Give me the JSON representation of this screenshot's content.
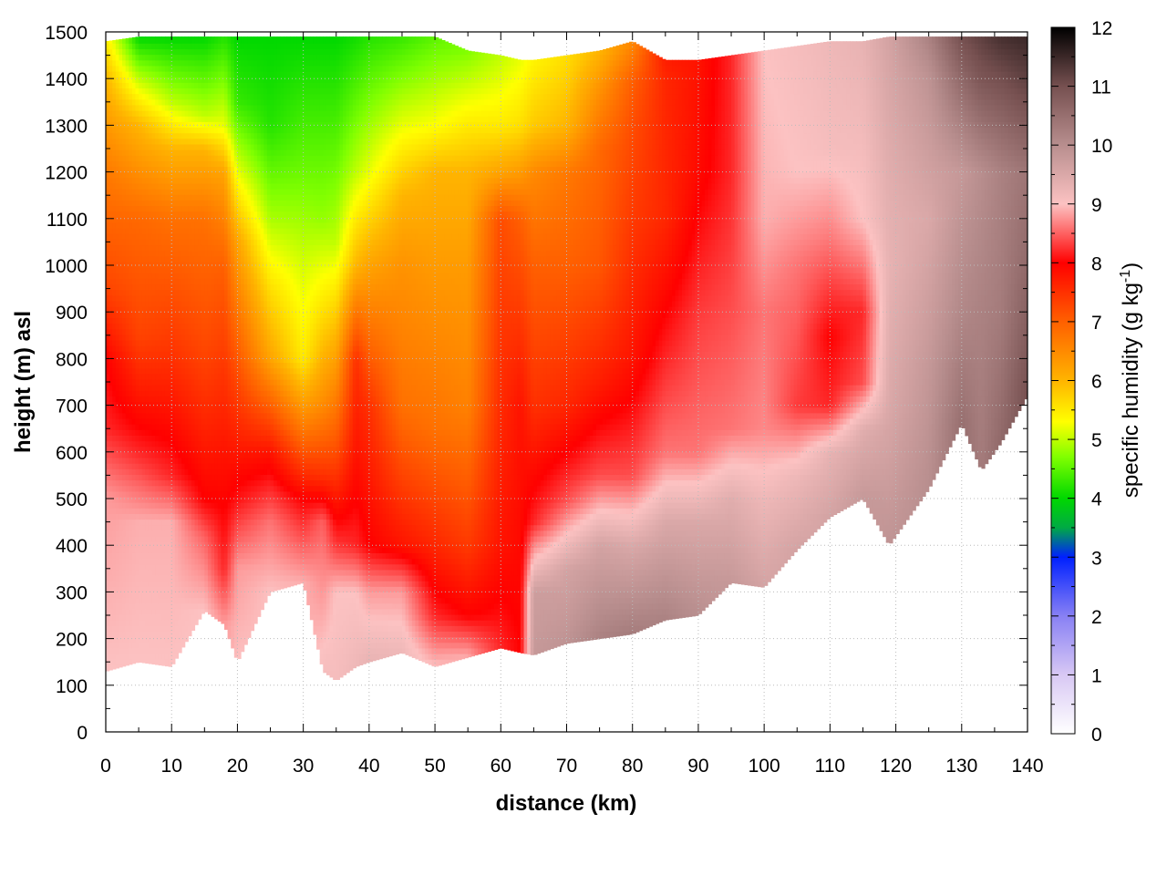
{
  "chart_data": {
    "type": "heatmap",
    "xlabel": "distance (km)",
    "ylabel": "height (m) asl",
    "colorbar": {
      "label_main": "specific humidity (g kg",
      "label_sup": "-1",
      "label_end": ")",
      "range": [
        0,
        12
      ],
      "ticks": [
        "0",
        "1",
        "2",
        "3",
        "4",
        "5",
        "6",
        "7",
        "8",
        "9",
        "10",
        "11",
        "12"
      ],
      "colormap": [
        {
          "v": 0,
          "color": "#ffffff"
        },
        {
          "v": 1,
          "color": "#d8c8f4"
        },
        {
          "v": 2,
          "color": "#8880f4"
        },
        {
          "v": 3,
          "color": "#0020ff"
        },
        {
          "v": 3.5,
          "color": "#00aa44"
        },
        {
          "v": 4,
          "color": "#00d800"
        },
        {
          "v": 4.7,
          "color": "#80ff00"
        },
        {
          "v": 5.3,
          "color": "#ffff00"
        },
        {
          "v": 6,
          "color": "#ffb400"
        },
        {
          "v": 7,
          "color": "#ff6000"
        },
        {
          "v": 8,
          "color": "#ff0000"
        },
        {
          "v": 9,
          "color": "#fcc2c2"
        },
        {
          "v": 10,
          "color": "#b88e8e"
        },
        {
          "v": 11,
          "color": "#765050"
        },
        {
          "v": 12,
          "color": "#000000"
        }
      ]
    },
    "xlim": [
      0,
      140
    ],
    "ylim": [
      0,
      1500
    ],
    "xticks": [
      "0",
      "10",
      "20",
      "30",
      "40",
      "50",
      "60",
      "70",
      "80",
      "90",
      "100",
      "110",
      "120",
      "130",
      "140"
    ],
    "yticks": [
      "0",
      "100",
      "200",
      "300",
      "400",
      "500",
      "600",
      "700",
      "800",
      "900",
      "1000",
      "1100",
      "1200",
      "1300",
      "1400",
      "1500"
    ],
    "grid": true,
    "profiles": [
      {
        "x": 0,
        "bottom": 130,
        "top": 1480,
        "levels": [
          [
            130,
            9.0
          ],
          [
            500,
            8.8
          ],
          [
            650,
            8.2
          ],
          [
            800,
            8.0
          ],
          [
            950,
            7.3
          ],
          [
            1200,
            6.7
          ],
          [
            1400,
            6.0
          ],
          [
            1480,
            5.5
          ]
        ]
      },
      {
        "x": 5,
        "bottom": 150,
        "top": 1490,
        "levels": [
          [
            150,
            9.0
          ],
          [
            450,
            8.9
          ],
          [
            600,
            8.2
          ],
          [
            850,
            7.3
          ],
          [
            1100,
            6.9
          ],
          [
            1300,
            6.0
          ],
          [
            1400,
            5.0
          ],
          [
            1490,
            4.0
          ]
        ]
      },
      {
        "x": 10,
        "bottom": 140,
        "top": 1490,
        "levels": [
          [
            140,
            9.0
          ],
          [
            450,
            8.9
          ],
          [
            550,
            8.2
          ],
          [
            800,
            7.5
          ],
          [
            1100,
            6.8
          ],
          [
            1250,
            6.0
          ],
          [
            1350,
            5.0
          ],
          [
            1490,
            4.0
          ]
        ]
      },
      {
        "x": 15,
        "bottom": 260,
        "top": 1490,
        "levels": [
          [
            260,
            9.0
          ],
          [
            420,
            8.5
          ],
          [
            500,
            8.0
          ],
          [
            800,
            7.3
          ],
          [
            1100,
            6.8
          ],
          [
            1250,
            6.0
          ],
          [
            1320,
            5.0
          ],
          [
            1490,
            4.0
          ]
        ]
      },
      {
        "x": 18,
        "bottom": 230,
        "top": 1490,
        "levels": [
          [
            230,
            8.8
          ],
          [
            350,
            8.2
          ],
          [
            600,
            7.8
          ],
          [
            1000,
            7.0
          ],
          [
            1200,
            6.2
          ],
          [
            1300,
            5.2
          ],
          [
            1490,
            4.2
          ]
        ]
      },
      {
        "x": 20,
        "bottom": 150,
        "top": 1490,
        "levels": [
          [
            150,
            9.0
          ],
          [
            350,
            8.8
          ],
          [
            500,
            8.1
          ],
          [
            800,
            7.1
          ],
          [
            1050,
            6.2
          ],
          [
            1200,
            5.2
          ],
          [
            1350,
            4.3
          ],
          [
            1490,
            4.0
          ]
        ]
      },
      {
        "x": 25,
        "bottom": 300,
        "top": 1490,
        "levels": [
          [
            300,
            9.0
          ],
          [
            450,
            8.6
          ],
          [
            600,
            7.8
          ],
          [
            800,
            6.2
          ],
          [
            950,
            5.6
          ],
          [
            1100,
            4.9
          ],
          [
            1300,
            4.2
          ],
          [
            1490,
            4.0
          ]
        ]
      },
      {
        "x": 30,
        "bottom": 320,
        "top": 1490,
        "levels": [
          [
            320,
            8.9
          ],
          [
            500,
            8.0
          ],
          [
            650,
            6.7
          ],
          [
            800,
            5.5
          ],
          [
            1000,
            5.1
          ],
          [
            1200,
            4.6
          ],
          [
            1490,
            4.0
          ]
        ]
      },
      {
        "x": 33,
        "bottom": 130,
        "top": 1490,
        "levels": [
          [
            130,
            9.1
          ],
          [
            450,
            8.5
          ],
          [
            550,
            7.5
          ],
          [
            700,
            6.5
          ],
          [
            900,
            5.6
          ],
          [
            1100,
            4.8
          ],
          [
            1490,
            4.0
          ]
        ]
      },
      {
        "x": 35,
        "bottom": 110,
        "top": 1490,
        "levels": [
          [
            110,
            9.1
          ],
          [
            300,
            9.0
          ],
          [
            400,
            8.3
          ],
          [
            600,
            7.2
          ],
          [
            850,
            6.0
          ],
          [
            1050,
            5.0
          ],
          [
            1300,
            4.4
          ],
          [
            1490,
            4.0
          ]
        ]
      },
      {
        "x": 38,
        "bottom": 140,
        "top": 1490,
        "levels": [
          [
            140,
            9.2
          ],
          [
            300,
            9.0
          ],
          [
            400,
            8.2
          ],
          [
            600,
            7.8
          ],
          [
            800,
            7.5
          ],
          [
            1000,
            6.0
          ],
          [
            1200,
            5.0
          ],
          [
            1490,
            4.1
          ]
        ]
      },
      {
        "x": 40,
        "bottom": 150,
        "top": 1490,
        "levels": [
          [
            150,
            9.3
          ],
          [
            300,
            8.8
          ],
          [
            400,
            8.0
          ],
          [
            700,
            7.5
          ],
          [
            1000,
            6.2
          ],
          [
            1200,
            5.2
          ],
          [
            1490,
            4.2
          ]
        ]
      },
      {
        "x": 45,
        "bottom": 170,
        "top": 1490,
        "levels": [
          [
            170,
            9.2
          ],
          [
            300,
            8.8
          ],
          [
            400,
            7.8
          ],
          [
            700,
            6.8
          ],
          [
            1000,
            6.4
          ],
          [
            1150,
            6.0
          ],
          [
            1300,
            5.2
          ],
          [
            1490,
            4.3
          ]
        ]
      },
      {
        "x": 50,
        "bottom": 140,
        "top": 1490,
        "levels": [
          [
            140,
            9.0
          ],
          [
            250,
            8.2
          ],
          [
            400,
            7.6
          ],
          [
            650,
            6.8
          ],
          [
            1000,
            6.3
          ],
          [
            1200,
            6.0
          ],
          [
            1300,
            5.3
          ],
          [
            1490,
            4.5
          ]
        ]
      },
      {
        "x": 55,
        "bottom": 160,
        "top": 1460,
        "levels": [
          [
            160,
            8.9
          ],
          [
            250,
            8.0
          ],
          [
            400,
            7.4
          ],
          [
            700,
            6.6
          ],
          [
            1000,
            6.3
          ],
          [
            1200,
            6.0
          ],
          [
            1300,
            5.5
          ],
          [
            1460,
            4.7
          ]
        ]
      },
      {
        "x": 60,
        "bottom": 180,
        "top": 1450,
        "levels": [
          [
            180,
            8.2
          ],
          [
            400,
            7.8
          ],
          [
            900,
            7.4
          ],
          [
            1100,
            7.2
          ],
          [
            1200,
            6.2
          ],
          [
            1300,
            5.5
          ],
          [
            1450,
            5.0
          ]
        ]
      },
      {
        "x": 63,
        "bottom": 170,
        "top": 1440,
        "levels": [
          [
            170,
            8.0
          ],
          [
            700,
            7.8
          ],
          [
            1100,
            7.0
          ],
          [
            1200,
            6.3
          ],
          [
            1300,
            5.6
          ],
          [
            1440,
            5.2
          ]
        ]
      },
      {
        "x": 65,
        "bottom": 165,
        "top": 1440,
        "levels": [
          [
            165,
            9.8
          ],
          [
            300,
            9.7
          ],
          [
            450,
            8.2
          ],
          [
            700,
            7.5
          ],
          [
            1000,
            7.0
          ],
          [
            1200,
            6.5
          ],
          [
            1300,
            5.8
          ],
          [
            1440,
            5.4
          ]
        ]
      },
      {
        "x": 70,
        "bottom": 190,
        "top": 1450,
        "levels": [
          [
            190,
            9.9
          ],
          [
            350,
            9.6
          ],
          [
            500,
            8.4
          ],
          [
            700,
            7.6
          ],
          [
            1000,
            7.0
          ],
          [
            1200,
            6.7
          ],
          [
            1300,
            6.0
          ],
          [
            1450,
            5.6
          ]
        ]
      },
      {
        "x": 75,
        "bottom": 200,
        "top": 1460,
        "levels": [
          [
            200,
            10.2
          ],
          [
            400,
            9.6
          ],
          [
            550,
            8.4
          ],
          [
            750,
            7.7
          ],
          [
            1000,
            7.1
          ],
          [
            1250,
            6.9
          ],
          [
            1380,
            6.4
          ],
          [
            1460,
            6.0
          ]
        ]
      },
      {
        "x": 80,
        "bottom": 210,
        "top": 1480,
        "levels": [
          [
            210,
            10.3
          ],
          [
            400,
            9.5
          ],
          [
            550,
            8.4
          ],
          [
            800,
            7.8
          ],
          [
            1100,
            7.4
          ],
          [
            1300,
            7.2
          ],
          [
            1400,
            7.0
          ],
          [
            1480,
            6.5
          ]
        ]
      },
      {
        "x": 85,
        "bottom": 240,
        "top": 1440,
        "levels": [
          [
            240,
            10.2
          ],
          [
            450,
            9.5
          ],
          [
            600,
            8.6
          ],
          [
            800,
            8.2
          ],
          [
            1100,
            7.6
          ],
          [
            1400,
            7.6
          ],
          [
            1440,
            7.7
          ]
        ]
      },
      {
        "x": 90,
        "bottom": 250,
        "top": 1440,
        "levels": [
          [
            250,
            10.0
          ],
          [
            450,
            9.5
          ],
          [
            600,
            8.6
          ],
          [
            900,
            8.3
          ],
          [
            1200,
            7.9
          ],
          [
            1440,
            7.8
          ]
        ]
      },
      {
        "x": 95,
        "bottom": 320,
        "top": 1450,
        "levels": [
          [
            320,
            9.8
          ],
          [
            500,
            9.4
          ],
          [
            650,
            8.6
          ],
          [
            900,
            8.4
          ],
          [
            1200,
            8.2
          ],
          [
            1450,
            8.2
          ]
        ]
      },
      {
        "x": 100,
        "bottom": 310,
        "top": 1460,
        "levels": [
          [
            310,
            9.6
          ],
          [
            500,
            9.2
          ],
          [
            650,
            8.7
          ],
          [
            900,
            8.6
          ],
          [
            1100,
            8.9
          ],
          [
            1460,
            9.0
          ]
        ]
      },
      {
        "x": 105,
        "bottom": 390,
        "top": 1470,
        "levels": [
          [
            390,
            9.6
          ],
          [
            550,
            9.2
          ],
          [
            700,
            8.3
          ],
          [
            1000,
            8.6
          ],
          [
            1200,
            9.0
          ],
          [
            1470,
            9.1
          ]
        ]
      },
      {
        "x": 110,
        "bottom": 460,
        "top": 1480,
        "levels": [
          [
            460,
            9.6
          ],
          [
            600,
            9.3
          ],
          [
            700,
            8.2
          ],
          [
            850,
            8.0
          ],
          [
            1050,
            8.6
          ],
          [
            1250,
            9.1
          ],
          [
            1480,
            9.2
          ]
        ]
      },
      {
        "x": 115,
        "bottom": 500,
        "top": 1480,
        "levels": [
          [
            500,
            9.8
          ],
          [
            650,
            9.4
          ],
          [
            750,
            8.4
          ],
          [
            900,
            8.2
          ],
          [
            1100,
            9.0
          ],
          [
            1480,
            9.3
          ]
        ]
      },
      {
        "x": 119,
        "bottom": 400,
        "top": 1490,
        "levels": [
          [
            400,
            9.9
          ],
          [
            700,
            9.5
          ],
          [
            1000,
            9.3
          ],
          [
            1200,
            9.4
          ],
          [
            1490,
            9.6
          ]
        ]
      },
      {
        "x": 125,
        "bottom": 520,
        "top": 1490,
        "levels": [
          [
            520,
            10.0
          ],
          [
            800,
            9.8
          ],
          [
            1100,
            9.5
          ],
          [
            1400,
            9.9
          ],
          [
            1490,
            10.2
          ]
        ]
      },
      {
        "x": 130,
        "bottom": 660,
        "top": 1490,
        "levels": [
          [
            660,
            10.5
          ],
          [
            900,
            10.1
          ],
          [
            1200,
            9.8
          ],
          [
            1400,
            10.6
          ],
          [
            1490,
            11.0
          ]
        ]
      },
      {
        "x": 133,
        "bottom": 560,
        "top": 1490,
        "levels": [
          [
            560,
            10.3
          ],
          [
            900,
            10.2
          ],
          [
            1200,
            10.0
          ],
          [
            1400,
            10.9
          ],
          [
            1490,
            11.2
          ]
        ]
      },
      {
        "x": 136,
        "bottom": 620,
        "top": 1490,
        "levels": [
          [
            620,
            10.6
          ],
          [
            900,
            10.3
          ],
          [
            1200,
            10.2
          ],
          [
            1400,
            11.0
          ],
          [
            1490,
            11.4
          ]
        ]
      },
      {
        "x": 140,
        "bottom": 720,
        "top": 1490,
        "levels": [
          [
            720,
            11.0
          ],
          [
            1000,
            10.6
          ],
          [
            1200,
            10.4
          ],
          [
            1400,
            11.2
          ],
          [
            1490,
            11.5
          ]
        ]
      }
    ]
  }
}
